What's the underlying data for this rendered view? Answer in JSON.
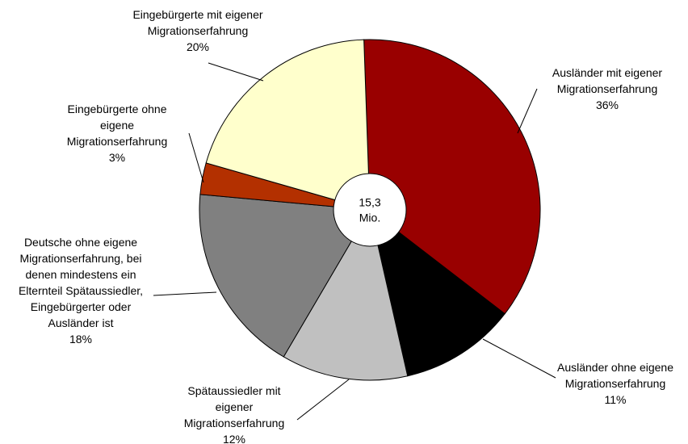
{
  "chart_data": {
    "type": "pie",
    "center_value": "15,3",
    "center_unit": "Mio.",
    "categories": [
      "Ausländer mit eigener Migrationserfahrung",
      "Ausländer ohne eigene Migrationserfahrung",
      "Spätaussiedler mit eigener Migrationserfahrung",
      "Deutsche ohne eigene Migrationserfahrung, bei denen mindestens ein Elternteil Spätaussiedler, Eingebürgerter oder Ausländer ist",
      "Eingebürgerte ohne eigene Migrationserfahrung",
      "Eingebürgerte mit eigener Migrationserfahrung"
    ],
    "values": [
      36,
      11,
      12,
      18,
      3,
      20
    ],
    "value_labels": [
      "36%",
      "11%",
      "12%",
      "18%",
      "3%",
      "20%"
    ],
    "colors": [
      "#990000",
      "#000000",
      "#c0c0c0",
      "#808080",
      "#b33000",
      "#ffffcc"
    ]
  }
}
